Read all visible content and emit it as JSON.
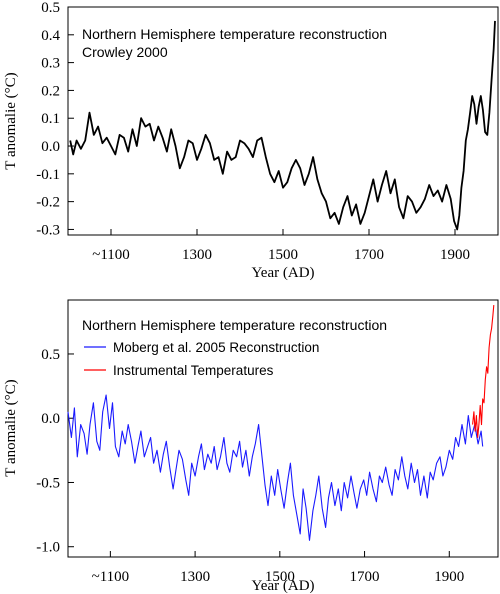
{
  "chart_data": [
    {
      "type": "line",
      "title": "Northern Hemisphere temperature reconstruction",
      "subtitle": "Crowley 2000",
      "xlabel": "Year (AD)",
      "ylabel": "T anomalie (°C)",
      "xlim": [
        1000,
        2000
      ],
      "ylim": [
        -0.32,
        0.5
      ],
      "x_ticks": [
        {
          "value": 1100,
          "label": "~1100"
        },
        {
          "value": 1300,
          "label": "1300"
        },
        {
          "value": 1500,
          "label": "1500"
        },
        {
          "value": 1700,
          "label": "1700"
        },
        {
          "value": 1900,
          "label": "1900"
        }
      ],
      "y_ticks": [
        {
          "value": 0.5,
          "label": "0.5"
        },
        {
          "value": 0.4,
          "label": "0.4"
        },
        {
          "value": 0.3,
          "label": "0.3"
        },
        {
          "value": 0.2,
          "label": "0.2"
        },
        {
          "value": 0.1,
          "label": "0.1"
        },
        {
          "value": 0.0,
          "label": "0.0"
        },
        {
          "value": -0.1,
          "label": "-0.1"
        },
        {
          "value": -0.2,
          "label": "-0.2"
        },
        {
          "value": -0.3,
          "label": "-0.3"
        }
      ],
      "series": [
        {
          "color": "#000000",
          "x": [
            1005,
            1012,
            1020,
            1030,
            1040,
            1050,
            1055,
            1060,
            1070,
            1080,
            1090,
            1100,
            1110,
            1120,
            1130,
            1140,
            1150,
            1160,
            1170,
            1180,
            1190,
            1200,
            1210,
            1220,
            1230,
            1240,
            1250,
            1260,
            1270,
            1280,
            1290,
            1300,
            1310,
            1320,
            1330,
            1340,
            1350,
            1360,
            1370,
            1380,
            1390,
            1400,
            1410,
            1420,
            1430,
            1440,
            1450,
            1460,
            1470,
            1480,
            1490,
            1500,
            1510,
            1520,
            1530,
            1540,
            1550,
            1560,
            1570,
            1580,
            1590,
            1600,
            1610,
            1620,
            1630,
            1640,
            1650,
            1660,
            1670,
            1680,
            1690,
            1700,
            1710,
            1720,
            1730,
            1740,
            1750,
            1760,
            1770,
            1780,
            1790,
            1800,
            1810,
            1820,
            1830,
            1840,
            1850,
            1860,
            1870,
            1880,
            1890,
            1898,
            1905,
            1910,
            1915,
            1920,
            1925,
            1930,
            1935,
            1940,
            1945,
            1950,
            1955,
            1960,
            1965,
            1970,
            1975,
            1980,
            1985,
            1990,
            1993
          ],
          "y": [
            0.02,
            -0.03,
            0.02,
            -0.01,
            0.02,
            0.12,
            0.08,
            0.04,
            0.07,
            0.01,
            0.03,
            0.0,
            -0.03,
            0.04,
            0.03,
            -0.02,
            0.06,
            0.0,
            0.1,
            0.07,
            0.08,
            0.02,
            0.07,
            0.03,
            -0.02,
            0.06,
            0.0,
            -0.08,
            -0.04,
            0.02,
            0.01,
            -0.05,
            -0.01,
            0.04,
            0.01,
            -0.05,
            -0.04,
            -0.1,
            -0.02,
            -0.05,
            -0.04,
            0.02,
            0.01,
            -0.01,
            -0.04,
            0.02,
            0.03,
            -0.04,
            -0.1,
            -0.13,
            -0.09,
            -0.15,
            -0.13,
            -0.08,
            -0.05,
            -0.08,
            -0.14,
            -0.1,
            -0.04,
            -0.12,
            -0.17,
            -0.2,
            -0.26,
            -0.24,
            -0.28,
            -0.22,
            -0.18,
            -0.25,
            -0.21,
            -0.28,
            -0.24,
            -0.18,
            -0.12,
            -0.2,
            -0.14,
            -0.09,
            -0.17,
            -0.12,
            -0.22,
            -0.26,
            -0.18,
            -0.2,
            -0.24,
            -0.22,
            -0.19,
            -0.14,
            -0.18,
            -0.16,
            -0.2,
            -0.14,
            -0.19,
            -0.27,
            -0.3,
            -0.25,
            -0.15,
            -0.09,
            0.02,
            0.06,
            0.12,
            0.18,
            0.15,
            0.08,
            0.14,
            0.18,
            0.13,
            0.05,
            0.04,
            0.12,
            0.24,
            0.35,
            0.45
          ]
        }
      ]
    },
    {
      "type": "line",
      "title": "Northern Hemisphere temperature reconstruction",
      "xlabel": "Year (AD)",
      "ylabel": "T anomalie (°C)",
      "xlim": [
        1000,
        2015
      ],
      "ylim": [
        -1.08,
        0.92
      ],
      "legend": "top-left",
      "x_ticks": [
        {
          "value": 1100,
          "label": "~1100"
        },
        {
          "value": 1300,
          "label": "1300"
        },
        {
          "value": 1500,
          "label": "1500"
        },
        {
          "value": 1700,
          "label": "1700"
        },
        {
          "value": 1900,
          "label": "1900"
        }
      ],
      "y_ticks": [
        {
          "value": 0.5,
          "label": "0.5"
        },
        {
          "value": 0.0,
          "label": "0.0"
        },
        {
          "value": -0.5,
          "label": "-0.5"
        },
        {
          "value": -1.0,
          "label": "-1.0"
        }
      ],
      "series": [
        {
          "name": "Moberg et al. 2005 Reconstruction",
          "color": "#1a1aff",
          "x": [
            1000,
            1008,
            1015,
            1022,
            1030,
            1038,
            1045,
            1052,
            1060,
            1068,
            1075,
            1082,
            1090,
            1098,
            1105,
            1112,
            1120,
            1128,
            1135,
            1142,
            1150,
            1158,
            1165,
            1172,
            1180,
            1188,
            1195,
            1202,
            1210,
            1218,
            1225,
            1232,
            1240,
            1248,
            1255,
            1262,
            1270,
            1278,
            1285,
            1292,
            1300,
            1308,
            1315,
            1322,
            1330,
            1338,
            1345,
            1352,
            1360,
            1368,
            1375,
            1382,
            1390,
            1398,
            1405,
            1412,
            1420,
            1428,
            1435,
            1442,
            1450,
            1458,
            1465,
            1472,
            1480,
            1488,
            1495,
            1502,
            1510,
            1518,
            1525,
            1532,
            1540,
            1548,
            1555,
            1562,
            1570,
            1578,
            1585,
            1592,
            1600,
            1608,
            1615,
            1622,
            1630,
            1638,
            1645,
            1652,
            1660,
            1668,
            1675,
            1682,
            1690,
            1698,
            1705,
            1712,
            1720,
            1728,
            1735,
            1742,
            1750,
            1758,
            1765,
            1772,
            1780,
            1788,
            1795,
            1802,
            1810,
            1818,
            1825,
            1832,
            1840,
            1848,
            1855,
            1862,
            1870,
            1878,
            1885,
            1892,
            1900,
            1908,
            1915,
            1922,
            1930,
            1938,
            1945,
            1952,
            1960,
            1968,
            1975,
            1979
          ],
          "y": [
            0.05,
            -0.15,
            0.08,
            -0.3,
            -0.05,
            -0.12,
            -0.28,
            -0.05,
            0.12,
            -0.18,
            -0.25,
            0.05,
            0.18,
            -0.08,
            0.12,
            -0.22,
            -0.3,
            -0.1,
            -0.2,
            -0.05,
            -0.18,
            -0.35,
            -0.22,
            -0.1,
            -0.3,
            -0.22,
            -0.15,
            -0.35,
            -0.25,
            -0.42,
            -0.28,
            -0.18,
            -0.38,
            -0.55,
            -0.4,
            -0.25,
            -0.32,
            -0.48,
            -0.6,
            -0.35,
            -0.45,
            -0.3,
            -0.2,
            -0.4,
            -0.28,
            -0.35,
            -0.22,
            -0.4,
            -0.3,
            -0.15,
            -0.35,
            -0.42,
            -0.25,
            -0.3,
            -0.18,
            -0.38,
            -0.25,
            -0.45,
            -0.3,
            -0.2,
            -0.05,
            -0.3,
            -0.52,
            -0.68,
            -0.45,
            -0.6,
            -0.4,
            -0.55,
            -0.7,
            -0.5,
            -0.35,
            -0.6,
            -0.75,
            -0.9,
            -0.55,
            -0.7,
            -0.95,
            -0.72,
            -0.6,
            -0.45,
            -0.7,
            -0.85,
            -0.62,
            -0.5,
            -0.68,
            -0.55,
            -0.72,
            -0.5,
            -0.62,
            -0.45,
            -0.58,
            -0.7,
            -0.55,
            -0.48,
            -0.6,
            -0.42,
            -0.55,
            -0.65,
            -0.45,
            -0.5,
            -0.38,
            -0.52,
            -0.6,
            -0.4,
            -0.48,
            -0.3,
            -0.45,
            -0.55,
            -0.35,
            -0.5,
            -0.4,
            -0.6,
            -0.45,
            -0.62,
            -0.42,
            -0.48,
            -0.35,
            -0.3,
            -0.45,
            -0.38,
            -0.25,
            -0.32,
            -0.15,
            -0.22,
            -0.05,
            -0.2,
            0.02,
            -0.15,
            -0.05,
            -0.2,
            -0.1,
            -0.22
          ]
        },
        {
          "name": "Instrumental Temperatures",
          "color": "#ff0000",
          "x": [
            1955,
            1958,
            1961,
            1964,
            1967,
            1970,
            1973,
            1976,
            1979,
            1982,
            1985,
            1988,
            1991,
            1994,
            1997,
            2000,
            2003,
            2005
          ],
          "y": [
            -0.05,
            0.05,
            -0.1,
            0.02,
            -0.15,
            -0.05,
            0.1,
            -0.05,
            0.15,
            0.12,
            0.3,
            0.4,
            0.35,
            0.55,
            0.65,
            0.7,
            0.8,
            0.88
          ]
        }
      ]
    }
  ]
}
